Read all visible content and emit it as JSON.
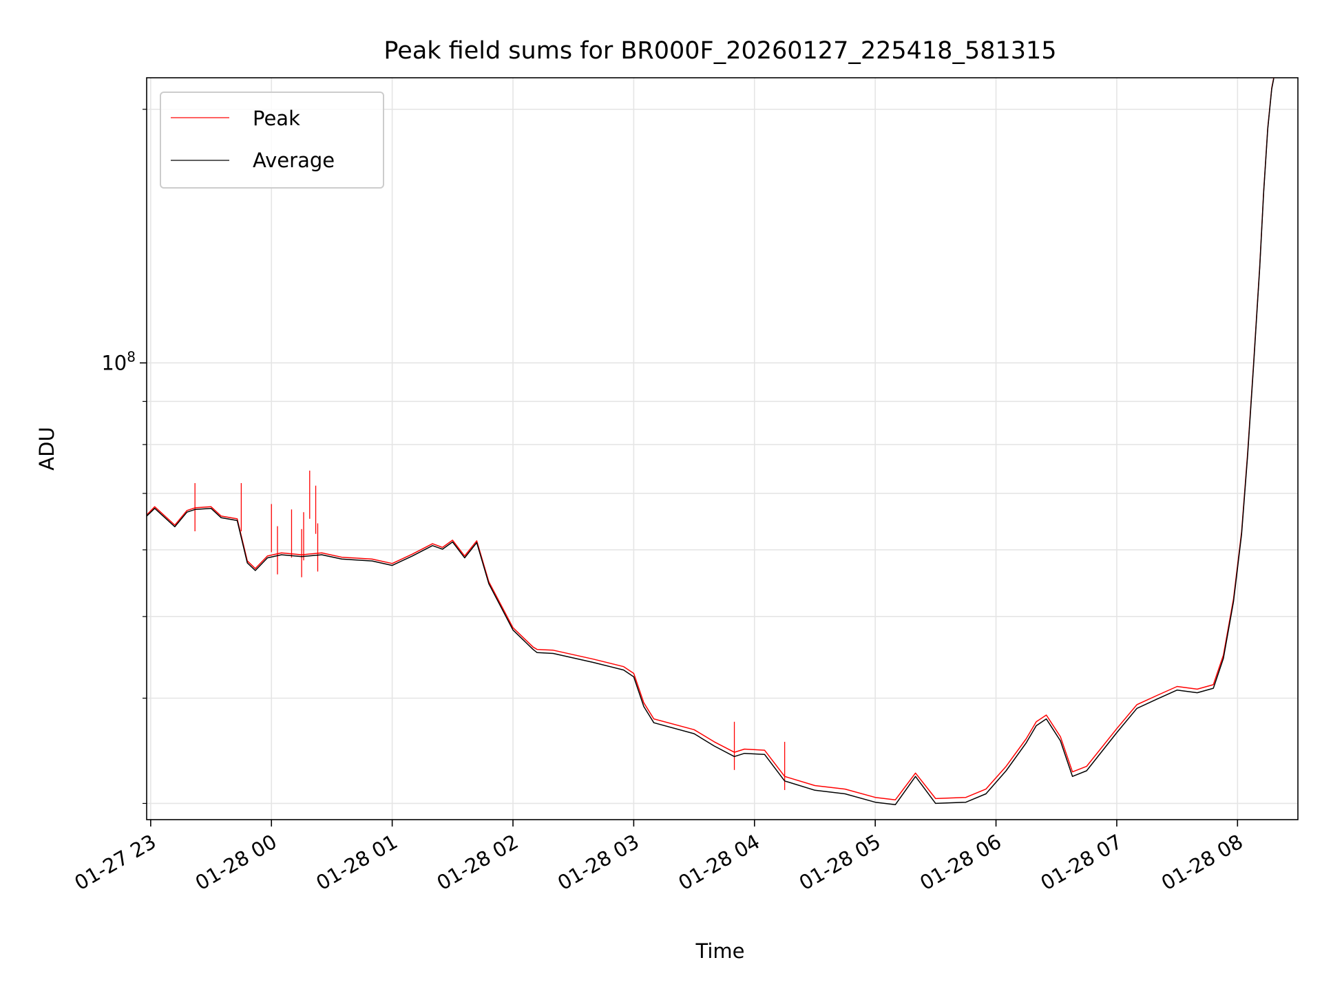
{
  "chart_data": {
    "type": "line",
    "title": "Peak field sums for BR000F_20260127_225418_581315",
    "xlabel": "Time",
    "ylabel": "ADU",
    "yscale": "log",
    "xlim": [
      "2026-01-27 22:58",
      "2026-01-28 08:30"
    ],
    "ylim": [
      28700000,
      218000000
    ],
    "grid": true,
    "legend_position": "upper left",
    "x_ticks": [
      {
        "t": "2026-01-27 23:00",
        "label": "01-27 23"
      },
      {
        "t": "2026-01-28 00:00",
        "label": "01-28 00"
      },
      {
        "t": "2026-01-28 01:00",
        "label": "01-28 01"
      },
      {
        "t": "2026-01-28 02:00",
        "label": "01-28 02"
      },
      {
        "t": "2026-01-28 03:00",
        "label": "01-28 03"
      },
      {
        "t": "2026-01-28 04:00",
        "label": "01-28 04"
      },
      {
        "t": "2026-01-28 05:00",
        "label": "01-28 05"
      },
      {
        "t": "2026-01-28 06:00",
        "label": "01-28 06"
      },
      {
        "t": "2026-01-28 07:00",
        "label": "01-28 07"
      },
      {
        "t": "2026-01-28 08:00",
        "label": "01-28 08"
      }
    ],
    "y_major_ticks": [
      {
        "value": 100000000,
        "base": "10",
        "exp": "8"
      }
    ],
    "y_minor_ticks": [
      30000000,
      40000000,
      50000000,
      60000000,
      70000000,
      80000000,
      90000000,
      200000000
    ],
    "series": [
      {
        "name": "Peak",
        "color": "#ff0000",
        "points": [
          [
            "2026-01-27 22:58",
            66000000
          ],
          [
            "2026-01-27 23:02",
            67500000
          ],
          [
            "2026-01-27 23:08",
            65500000
          ],
          [
            "2026-01-27 23:12",
            64200000
          ],
          [
            "2026-01-27 23:18",
            66800000
          ],
          [
            "2026-01-27 23:22",
            67300000
          ],
          [
            "2026-01-27 23:30",
            67500000
          ],
          [
            "2026-01-27 23:35",
            65800000
          ],
          [
            "2026-01-27 23:43",
            65300000
          ],
          [
            "2026-01-27 23:48",
            58200000
          ],
          [
            "2026-01-27 23:52",
            57000000
          ],
          [
            "2026-01-27 23:58",
            59000000
          ],
          [
            "2026-01-28 00:05",
            59500000
          ],
          [
            "2026-01-28 00:15",
            59200000
          ],
          [
            "2026-01-28 00:25",
            59500000
          ],
          [
            "2026-01-28 00:35",
            58800000
          ],
          [
            "2026-01-28 00:50",
            58500000
          ],
          [
            "2026-01-28 01:00",
            57800000
          ],
          [
            "2026-01-28 01:10",
            59300000
          ],
          [
            "2026-01-28 01:20",
            61000000
          ],
          [
            "2026-01-28 01:25",
            60400000
          ],
          [
            "2026-01-28 01:30",
            61600000
          ],
          [
            "2026-01-28 01:36",
            59000000
          ],
          [
            "2026-01-28 01:42",
            61500000
          ],
          [
            "2026-01-28 01:48",
            55000000
          ],
          [
            "2026-01-28 02:00",
            48500000
          ],
          [
            "2026-01-28 02:10",
            46000000
          ],
          [
            "2026-01-28 02:12",
            45700000
          ],
          [
            "2026-01-28 02:20",
            45600000
          ],
          [
            "2026-01-28 02:40",
            44500000
          ],
          [
            "2026-01-28 02:55",
            43600000
          ],
          [
            "2026-01-28 03:00",
            42800000
          ],
          [
            "2026-01-28 03:05",
            39500000
          ],
          [
            "2026-01-28 03:10",
            37800000
          ],
          [
            "2026-01-28 03:30",
            36700000
          ],
          [
            "2026-01-28 03:40",
            35500000
          ],
          [
            "2026-01-28 03:50",
            34500000
          ],
          [
            "2026-01-28 03:55",
            34800000
          ],
          [
            "2026-01-28 04:05",
            34700000
          ],
          [
            "2026-01-28 04:15",
            32300000
          ],
          [
            "2026-01-28 04:30",
            31500000
          ],
          [
            "2026-01-28 04:45",
            31200000
          ],
          [
            "2026-01-28 05:00",
            30500000
          ],
          [
            "2026-01-28 05:10",
            30300000
          ],
          [
            "2026-01-28 05:20",
            32600000
          ],
          [
            "2026-01-28 05:30",
            30400000
          ],
          [
            "2026-01-28 05:45",
            30500000
          ],
          [
            "2026-01-28 05:55",
            31200000
          ],
          [
            "2026-01-28 06:05",
            33200000
          ],
          [
            "2026-01-28 06:15",
            35800000
          ],
          [
            "2026-01-28 06:20",
            37500000
          ],
          [
            "2026-01-28 06:25",
            38200000
          ],
          [
            "2026-01-28 06:32",
            36000000
          ],
          [
            "2026-01-28 06:38",
            32700000
          ],
          [
            "2026-01-28 06:45",
            33200000
          ],
          [
            "2026-01-28 07:00",
            36800000
          ],
          [
            "2026-01-28 07:10",
            39300000
          ],
          [
            "2026-01-28 07:20",
            40300000
          ],
          [
            "2026-01-28 07:30",
            41300000
          ],
          [
            "2026-01-28 07:40",
            41000000
          ],
          [
            "2026-01-28 07:48",
            41500000
          ],
          [
            "2026-01-28 07:53",
            45000000
          ],
          [
            "2026-01-28 07:58",
            52500000
          ],
          [
            "2026-01-28 08:02",
            63000000
          ],
          [
            "2026-01-28 08:05",
            78000000
          ],
          [
            "2026-01-28 08:08",
            100000000
          ],
          [
            "2026-01-28 08:11",
            130000000
          ],
          [
            "2026-01-28 08:13",
            160000000
          ],
          [
            "2026-01-28 08:15",
            190000000
          ],
          [
            "2026-01-28 08:17",
            212000000
          ],
          [
            "2026-01-28 08:18",
            218000000
          ]
        ],
        "spikes": [
          [
            "2026-01-27 23:22",
            72000000
          ],
          [
            "2026-01-27 23:45",
            72000000
          ],
          [
            "2026-01-28 00:00",
            68000000
          ],
          [
            "2026-01-28 00:03",
            64000000
          ],
          [
            "2026-01-28 00:10",
            67000000
          ],
          [
            "2026-01-28 00:15",
            63500000
          ],
          [
            "2026-01-28 00:16",
            66500000
          ],
          [
            "2026-01-28 00:19",
            74500000
          ],
          [
            "2026-01-28 00:22",
            71500000
          ],
          [
            "2026-01-28 00:23",
            64500000
          ],
          [
            "2026-01-28 03:50",
            37500000
          ],
          [
            "2026-01-28 04:15",
            35500000
          ]
        ]
      },
      {
        "name": "Average",
        "color": "#000000",
        "points": [
          [
            "2026-01-27 22:58",
            65800000
          ],
          [
            "2026-01-27 23:02",
            67200000
          ],
          [
            "2026-01-27 23:08",
            65200000
          ],
          [
            "2026-01-27 23:12",
            63900000
          ],
          [
            "2026-01-27 23:18",
            66500000
          ],
          [
            "2026-01-27 23:22",
            67000000
          ],
          [
            "2026-01-27 23:30",
            67200000
          ],
          [
            "2026-01-27 23:35",
            65500000
          ],
          [
            "2026-01-27 23:43",
            65000000
          ],
          [
            "2026-01-27 23:48",
            57900000
          ],
          [
            "2026-01-27 23:52",
            56700000
          ],
          [
            "2026-01-27 23:58",
            58700000
          ],
          [
            "2026-01-28 00:05",
            59200000
          ],
          [
            "2026-01-28 00:15",
            58900000
          ],
          [
            "2026-01-28 00:25",
            59200000
          ],
          [
            "2026-01-28 00:35",
            58500000
          ],
          [
            "2026-01-28 00:50",
            58200000
          ],
          [
            "2026-01-28 01:00",
            57500000
          ],
          [
            "2026-01-28 01:10",
            59000000
          ],
          [
            "2026-01-28 01:20",
            60700000
          ],
          [
            "2026-01-28 01:25",
            60100000
          ],
          [
            "2026-01-28 01:30",
            61300000
          ],
          [
            "2026-01-28 01:36",
            58700000
          ],
          [
            "2026-01-28 01:42",
            61200000
          ],
          [
            "2026-01-28 01:48",
            54700000
          ],
          [
            "2026-01-28 02:00",
            48200000
          ],
          [
            "2026-01-28 02:10",
            45700000
          ],
          [
            "2026-01-28 02:12",
            45300000
          ],
          [
            "2026-01-28 02:20",
            45200000
          ],
          [
            "2026-01-28 02:40",
            44100000
          ],
          [
            "2026-01-28 02:55",
            43200000
          ],
          [
            "2026-01-28 03:00",
            42400000
          ],
          [
            "2026-01-28 03:05",
            39100000
          ],
          [
            "2026-01-28 03:10",
            37400000
          ],
          [
            "2026-01-28 03:30",
            36300000
          ],
          [
            "2026-01-28 03:40",
            35100000
          ],
          [
            "2026-01-28 03:50",
            34100000
          ],
          [
            "2026-01-28 03:55",
            34400000
          ],
          [
            "2026-01-28 04:05",
            34300000
          ],
          [
            "2026-01-28 04:15",
            31900000
          ],
          [
            "2026-01-28 04:30",
            31100000
          ],
          [
            "2026-01-28 04:45",
            30800000
          ],
          [
            "2026-01-28 05:00",
            30100000
          ],
          [
            "2026-01-28 05:10",
            29900000
          ],
          [
            "2026-01-28 05:20",
            32300000
          ],
          [
            "2026-01-28 05:30",
            30000000
          ],
          [
            "2026-01-28 05:45",
            30100000
          ],
          [
            "2026-01-28 05:55",
            30800000
          ],
          [
            "2026-01-28 06:05",
            32800000
          ],
          [
            "2026-01-28 06:15",
            35400000
          ],
          [
            "2026-01-28 06:20",
            37100000
          ],
          [
            "2026-01-28 06:25",
            37800000
          ],
          [
            "2026-01-28 06:32",
            35600000
          ],
          [
            "2026-01-28 06:38",
            32300000
          ],
          [
            "2026-01-28 06:45",
            32800000
          ],
          [
            "2026-01-28 07:00",
            36400000
          ],
          [
            "2026-01-28 07:10",
            38900000
          ],
          [
            "2026-01-28 07:20",
            39900000
          ],
          [
            "2026-01-28 07:30",
            40900000
          ],
          [
            "2026-01-28 07:40",
            40600000
          ],
          [
            "2026-01-28 07:48",
            41100000
          ],
          [
            "2026-01-28 07:53",
            44600000
          ],
          [
            "2026-01-28 07:58",
            52100000
          ],
          [
            "2026-01-28 08:02",
            62600000
          ],
          [
            "2026-01-28 08:05",
            77500000
          ],
          [
            "2026-01-28 08:08",
            99500000
          ],
          [
            "2026-01-28 08:11",
            129500000
          ],
          [
            "2026-01-28 08:13",
            159500000
          ],
          [
            "2026-01-28 08:15",
            189500000
          ],
          [
            "2026-01-28 08:17",
            211500000
          ],
          [
            "2026-01-28 08:18",
            217500000
          ]
        ]
      }
    ]
  }
}
